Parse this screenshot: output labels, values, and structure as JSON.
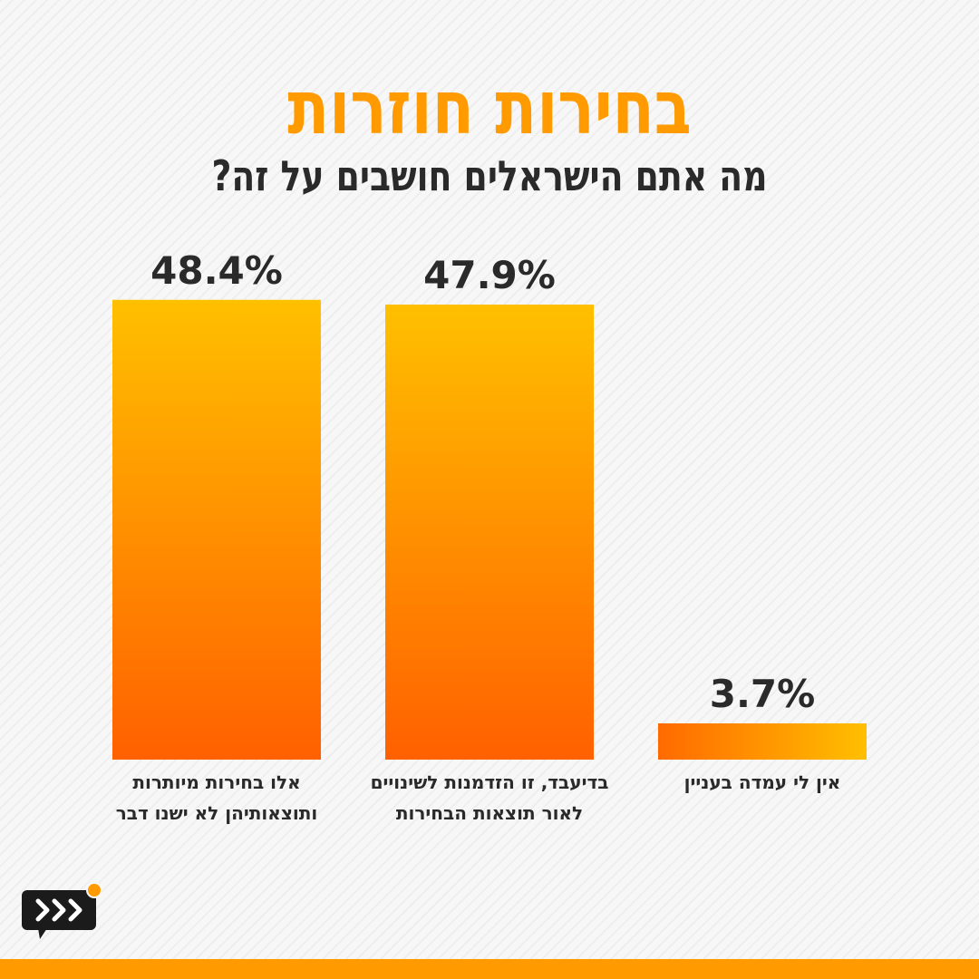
{
  "header": {
    "title": "בחירות חוזרות",
    "subtitle": "מה אתם הישראלים חושבים על זה?"
  },
  "colors": {
    "accent": "#ff9a00",
    "bar_top": "#ffc000",
    "bar_bottom": "#ff6000",
    "text": "#2a2a2a"
  },
  "chart_data": {
    "type": "bar",
    "title": "בחירות חוזרות",
    "subtitle": "מה אתם הישראלים חושבים על זה?",
    "unit": "%",
    "ylim": [
      0,
      50
    ],
    "grid": false,
    "xlabel": "",
    "ylabel": "",
    "categories": [
      [
        "אלו בחירות מיותרות",
        "ותוצאותיהן לא ישנו דבר"
      ],
      [
        "בדיעבד, זו הזדמנות לשינויים",
        "לאור תוצאות הבחירות"
      ],
      [
        "אין לי עמדה בעניין"
      ]
    ],
    "values": [
      48.4,
      47.9,
      3.7
    ],
    "value_labels": [
      "48.4%",
      "47.9%",
      "3.7%"
    ]
  },
  "logo": {
    "icon": "forward-arrows-chat-icon"
  }
}
